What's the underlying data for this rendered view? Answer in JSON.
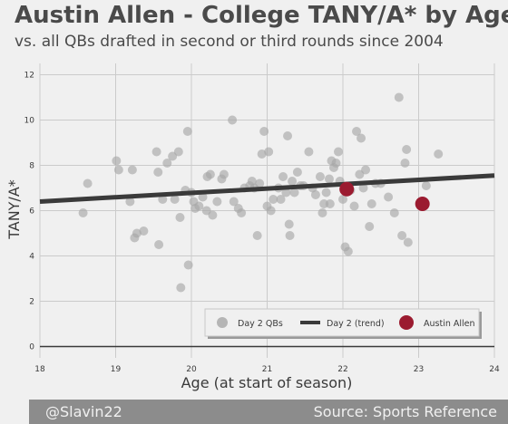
{
  "title": "Austin Allen - College TANY/A* by Age",
  "subtitle": "vs. all QBs drafted in second or third rounds since 2004",
  "footer": {
    "credit": "@Slavin22",
    "source": "Source: Sports Reference"
  },
  "colors": {
    "scatter": "#a8a8a8",
    "trend": "#3a3a3a",
    "highlight": "#9b1b30",
    "axis": "#3a3a3a",
    "grid": "#cbcbcb"
  },
  "chart_data": {
    "type": "scatter",
    "xlabel": "Age (at start of season)",
    "ylabel": "TANY/A*",
    "xlim": [
      18,
      24
    ],
    "ylim": [
      -0.5,
      12.5
    ],
    "xticks": [
      18,
      19,
      20,
      21,
      22,
      23,
      24
    ],
    "yticks": [
      0,
      2,
      4,
      6,
      8,
      10,
      12
    ],
    "grid": true,
    "legend_position": "lower-right",
    "legend": [
      "Day 2 QBs",
      "Day 2 (trend)",
      "Austin Allen"
    ],
    "series": [
      {
        "name": "Day 2 QBs",
        "points": [
          [
            18.57,
            5.9
          ],
          [
            18.63,
            7.2
          ],
          [
            19.01,
            8.2
          ],
          [
            19.04,
            7.8
          ],
          [
            19.19,
            6.4
          ],
          [
            19.22,
            7.8
          ],
          [
            19.25,
            4.8
          ],
          [
            19.28,
            5.0
          ],
          [
            19.37,
            5.1
          ],
          [
            19.54,
            8.6
          ],
          [
            19.56,
            7.7
          ],
          [
            19.57,
            4.5
          ],
          [
            19.62,
            6.5
          ],
          [
            19.68,
            8.1
          ],
          [
            19.75,
            8.4
          ],
          [
            19.78,
            6.5
          ],
          [
            19.83,
            8.6
          ],
          [
            19.85,
            5.7
          ],
          [
            19.86,
            2.6
          ],
          [
            19.92,
            6.9
          ],
          [
            19.95,
            9.5
          ],
          [
            19.96,
            3.6
          ],
          [
            20.0,
            6.8
          ],
          [
            20.03,
            6.4
          ],
          [
            20.05,
            6.1
          ],
          [
            20.1,
            6.2
          ],
          [
            20.15,
            6.6
          ],
          [
            20.2,
            6.0
          ],
          [
            20.21,
            7.5
          ],
          [
            20.25,
            7.6
          ],
          [
            20.28,
            5.8
          ],
          [
            20.34,
            6.4
          ],
          [
            20.4,
            7.4
          ],
          [
            20.43,
            7.6
          ],
          [
            20.54,
            10.0
          ],
          [
            20.56,
            6.4
          ],
          [
            20.62,
            6.1
          ],
          [
            20.66,
            5.9
          ],
          [
            20.7,
            7.0
          ],
          [
            20.77,
            7.1
          ],
          [
            20.8,
            7.3
          ],
          [
            20.83,
            7.0
          ],
          [
            20.87,
            4.9
          ],
          [
            20.9,
            7.2
          ],
          [
            20.93,
            8.5
          ],
          [
            20.96,
            9.5
          ],
          [
            21.0,
            6.2
          ],
          [
            21.02,
            8.6
          ],
          [
            21.05,
            6.0
          ],
          [
            21.08,
            6.5
          ],
          [
            21.15,
            7.0
          ],
          [
            21.18,
            6.5
          ],
          [
            21.21,
            7.5
          ],
          [
            21.25,
            6.8
          ],
          [
            21.27,
            9.3
          ],
          [
            21.29,
            5.4
          ],
          [
            21.3,
            4.9
          ],
          [
            21.33,
            7.3
          ],
          [
            21.36,
            6.8
          ],
          [
            21.4,
            7.7
          ],
          [
            21.44,
            7.1
          ],
          [
            21.48,
            7.1
          ],
          [
            21.55,
            8.6
          ],
          [
            21.6,
            7.0
          ],
          [
            21.64,
            6.7
          ],
          [
            21.7,
            7.5
          ],
          [
            21.73,
            5.9
          ],
          [
            21.75,
            6.3
          ],
          [
            21.78,
            6.8
          ],
          [
            21.82,
            7.4
          ],
          [
            21.83,
            6.3
          ],
          [
            21.85,
            8.2
          ],
          [
            21.88,
            7.9
          ],
          [
            21.91,
            8.1
          ],
          [
            21.94,
            8.6
          ],
          [
            21.96,
            7.3
          ],
          [
            22.0,
            6.5
          ],
          [
            22.03,
            4.4
          ],
          [
            22.07,
            4.2
          ],
          [
            22.1,
            6.9
          ],
          [
            22.15,
            6.2
          ],
          [
            22.18,
            9.5
          ],
          [
            22.22,
            7.6
          ],
          [
            22.24,
            9.2
          ],
          [
            22.27,
            7.0
          ],
          [
            22.3,
            7.8
          ],
          [
            22.35,
            5.3
          ],
          [
            22.38,
            6.3
          ],
          [
            22.43,
            7.2
          ],
          [
            22.5,
            7.2
          ],
          [
            22.6,
            6.6
          ],
          [
            22.68,
            5.9
          ],
          [
            22.74,
            11.0
          ],
          [
            22.78,
            4.9
          ],
          [
            22.82,
            8.1
          ],
          [
            22.84,
            8.7
          ],
          [
            22.86,
            4.6
          ],
          [
            23.1,
            7.1
          ],
          [
            23.26,
            8.5
          ]
        ]
      },
      {
        "name": "Day 2 (trend)",
        "line": [
          [
            18,
            6.4
          ],
          [
            24,
            7.55
          ]
        ]
      },
      {
        "name": "Austin Allen",
        "points": [
          [
            22.05,
            6.95
          ],
          [
            23.05,
            6.3
          ]
        ]
      }
    ]
  }
}
